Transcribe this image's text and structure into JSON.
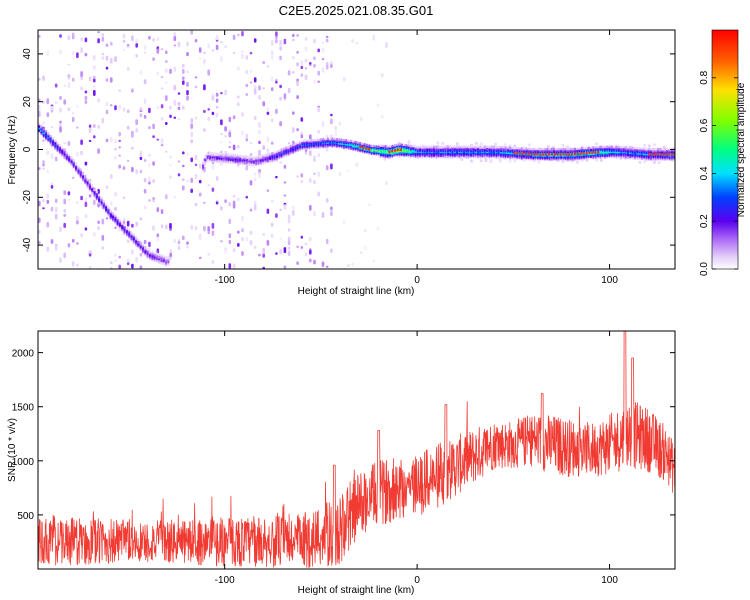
{
  "figure_title": "C2E5.2025.021.08.35.G01",
  "colors": {
    "snr_line": "#f03a32",
    "ridge_core": "#e2342f",
    "colormap": [
      "#ffffff",
      "#e4cffa",
      "#9a48f4",
      "#5a00f0",
      "#0040ff",
      "#00e0ff",
      "#00ff80",
      "#80ff00",
      "#ffe000",
      "#ff6000",
      "#ff0000"
    ]
  },
  "chart_data": [
    {
      "type": "heatmap",
      "xlabel": "Height of straight line (km)",
      "ylabel": "Frequency (Hz)",
      "xlim": [
        -197,
        134
      ],
      "ylim": [
        -50,
        50
      ],
      "x_ticks": [
        -100,
        0,
        100
      ],
      "x_tick_labels": [
        "-100",
        "0",
        "100"
      ],
      "y_ticks": [
        -40,
        -20,
        0,
        20,
        40
      ],
      "y_tick_labels": [
        "-40",
        "-20",
        "0",
        "20",
        "40"
      ],
      "colorbar": {
        "label": "Normalized spectral amplitude",
        "range": [
          0,
          1
        ],
        "ticks": [
          0.0,
          0.2,
          0.4,
          0.6,
          0.8
        ],
        "tick_labels": [
          "0.0",
          "0.2",
          "0.4",
          "0.6",
          "0.8"
        ]
      },
      "ridge": {
        "height_km": [
          -197,
          -180,
          -160,
          -140,
          -130,
          -110,
          -95,
          -85,
          -75,
          -60,
          -45,
          -35,
          -25,
          -15,
          -10,
          0,
          20,
          40,
          60,
          80,
          95,
          105,
          120,
          134
        ],
        "frequency_hz": [
          9,
          -5,
          -27,
          -44,
          -47,
          -3,
          -4,
          -5,
          -3,
          2,
          3,
          2,
          0,
          -1,
          0,
          -1,
          -1,
          -1,
          -2,
          -2,
          -1,
          -1,
          -2,
          -2
        ],
        "amplitude": [
          0.5,
          0.3,
          0.35,
          0.3,
          0.2,
          0.25,
          0.3,
          0.25,
          0.35,
          0.4,
          0.45,
          0.55,
          0.65,
          0.7,
          0.85,
          0.45,
          0.45,
          0.45,
          0.55,
          0.6,
          0.6,
          0.45,
          0.45,
          0.5
        ]
      }
    },
    {
      "type": "line",
      "xlabel": "Height of straight line (km)",
      "ylabel": "SNR (10 * v/v)",
      "xlim": [
        -197,
        134
      ],
      "ylim": [
        0,
        2200
      ],
      "x_ticks": [
        -100,
        0,
        100
      ],
      "x_tick_labels": [
        "-100",
        "0",
        "100"
      ],
      "y_ticks": [
        500,
        1000,
        1500,
        2000
      ],
      "y_tick_labels": [
        "500",
        "1000",
        "1500",
        "2000"
      ],
      "series": [
        {
          "x": [
            -197,
            -180,
            -160,
            -140,
            -120,
            -100,
            -80,
            -60,
            -50,
            -40,
            -35,
            -30,
            -20,
            -10,
            0,
            10,
            20,
            30,
            40,
            50,
            60,
            70,
            80,
            90,
            100,
            110,
            120,
            130,
            134
          ],
          "y": [
            250,
            250,
            250,
            250,
            250,
            250,
            250,
            260,
            300,
            330,
            500,
            600,
            700,
            750,
            780,
            850,
            950,
            1050,
            1150,
            1150,
            1200,
            1150,
            1120,
            1100,
            1150,
            1250,
            1200,
            1050,
            900
          ],
          "amplitude": [
            220,
            220,
            220,
            200,
            210,
            230,
            230,
            260,
            300,
            330,
            330,
            300,
            300,
            300,
            300,
            300,
            280,
            260,
            230,
            220,
            250,
            280,
            270,
            250,
            280,
            320,
            300,
            260,
            240
          ],
          "peaks": [
            {
              "x": -43,
              "y": 960
            },
            {
              "x": -20,
              "y": 1280
            },
            {
              "x": 15,
              "y": 1520
            },
            {
              "x": 65,
              "y": 1620
            },
            {
              "x": 108,
              "y": 2200
            },
            {
              "x": 112,
              "y": 1950
            }
          ]
        }
      ]
    }
  ]
}
